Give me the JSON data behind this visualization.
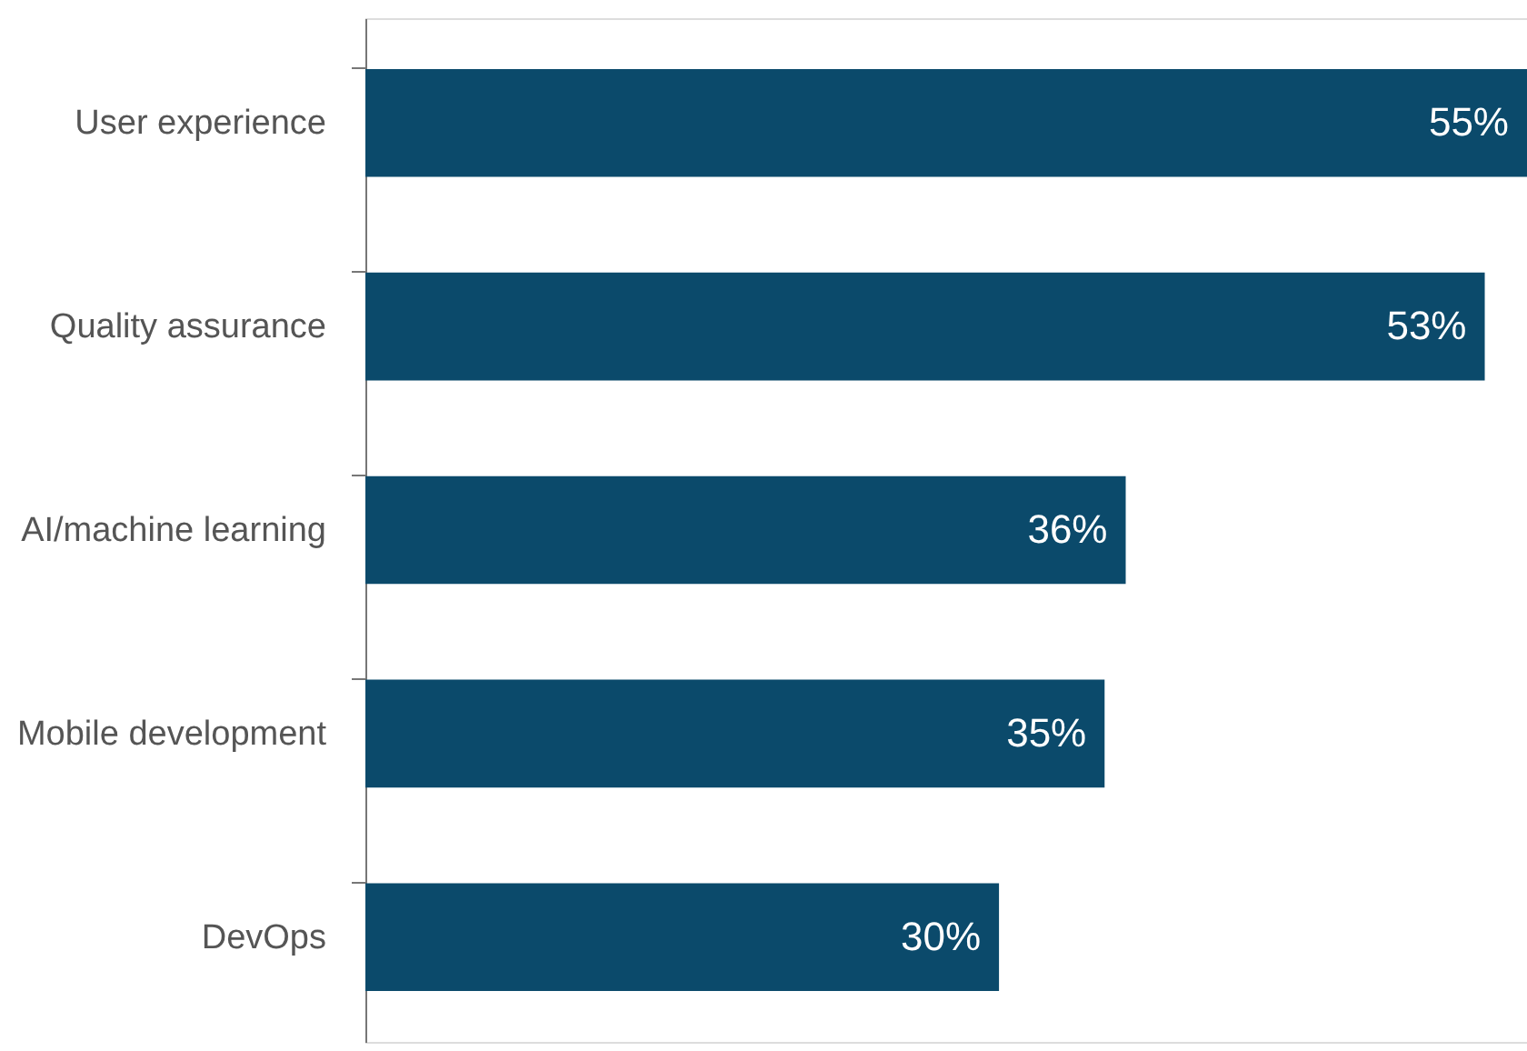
{
  "chart_data": {
    "type": "bar",
    "orientation": "horizontal",
    "categories": [
      "User experience",
      "Quality assurance",
      "AI/machine learning",
      "Mobile development",
      "DevOps"
    ],
    "values": [
      55,
      53,
      36,
      35,
      30
    ],
    "value_labels": [
      "55%",
      "53%",
      "36%",
      "35%",
      "30%"
    ],
    "color": "#0b4a6b"
  }
}
